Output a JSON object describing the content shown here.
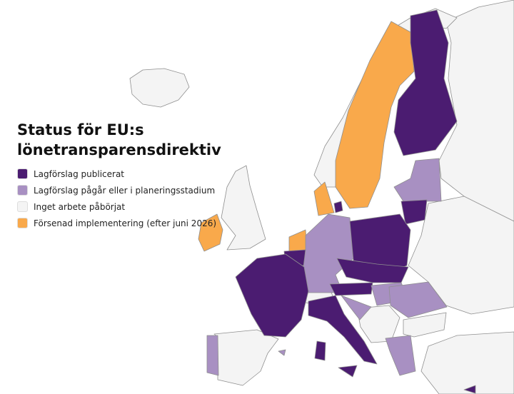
{
  "title": "Status för EU:s lönetransparensdirektiv",
  "legend": [
    {
      "label": "Lagförslag publicerat",
      "color": "#4b1c71"
    },
    {
      "label": "Lagförslag pågår eller i planeringsstadium",
      "color": "#a890c2"
    },
    {
      "label": "Inget arbete påbörjat",
      "color": "#f4f4f4"
    },
    {
      "label": "Försenad implementering (efter juni 2026)",
      "color": "#f9a94b"
    }
  ]
}
